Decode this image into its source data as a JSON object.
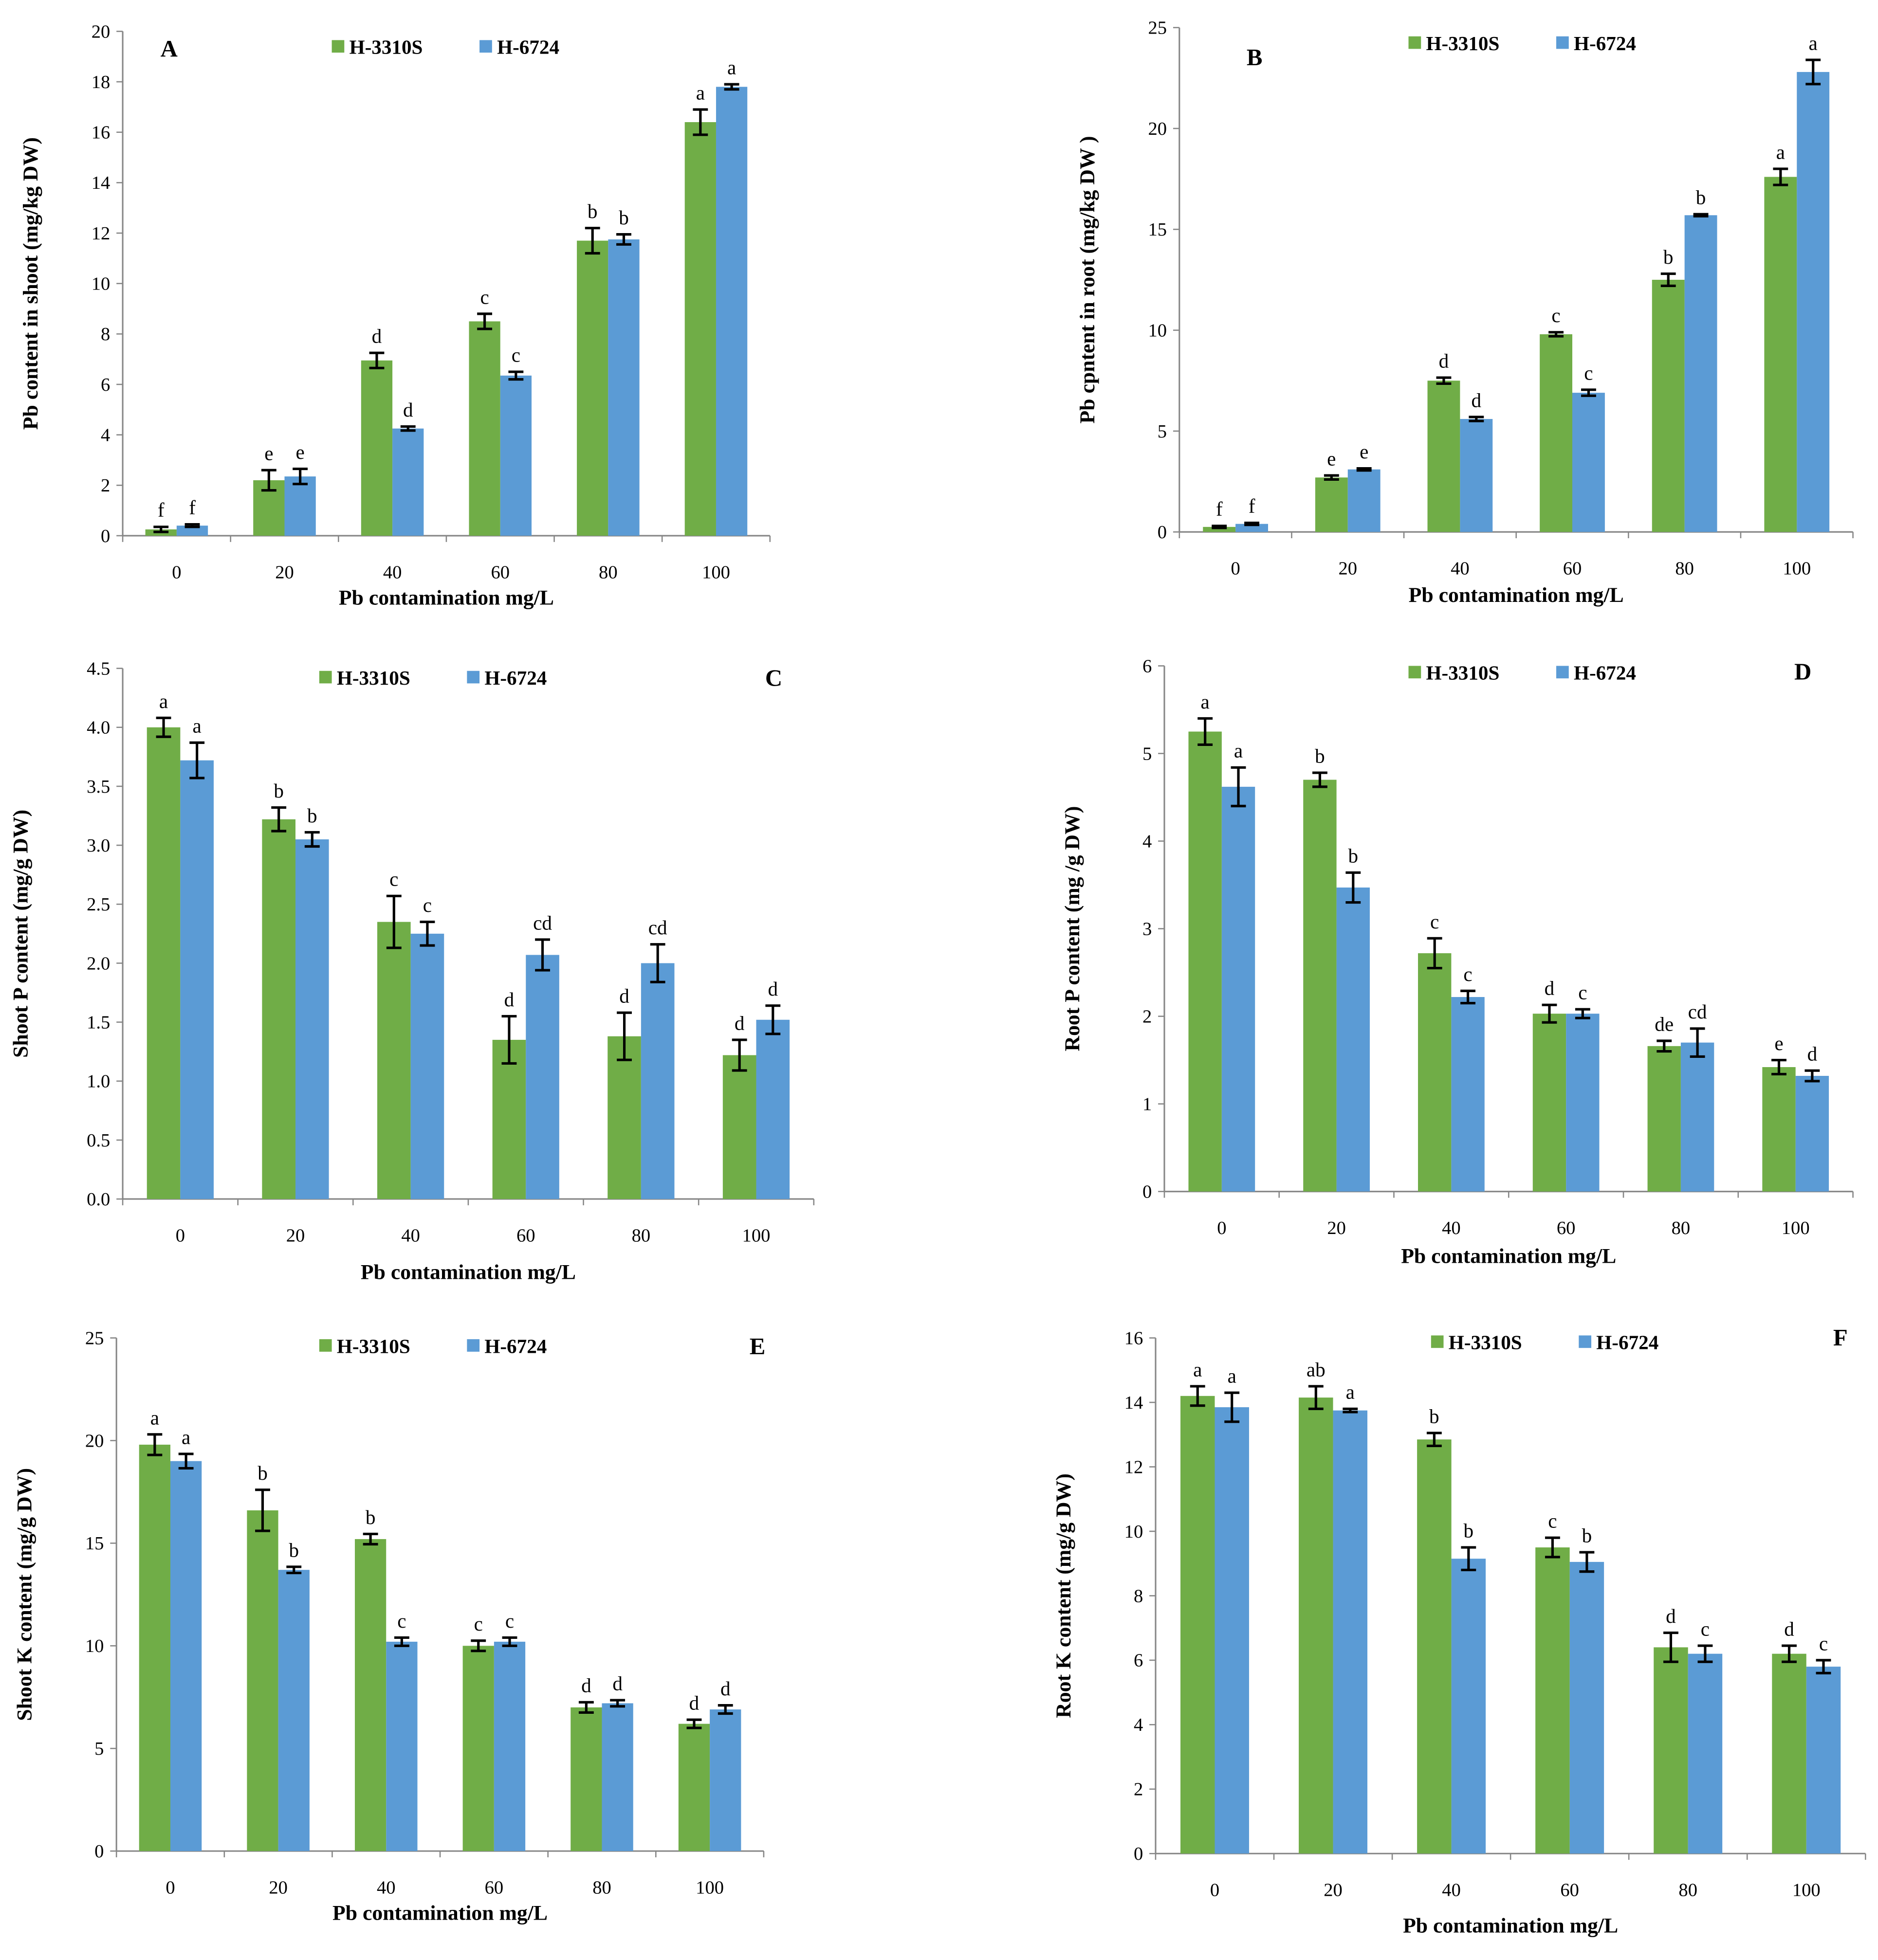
{
  "colors": {
    "H-3310S": "#70AD47",
    "H-6724": "#5B9BD5",
    "axis": "#868686"
  },
  "chart_data": [
    {
      "type": "bar",
      "panel": "A",
      "title": "A",
      "categories": [
        "0",
        "20",
        "40",
        "60",
        "80",
        "100"
      ],
      "xlabel": "Pb contamination mg/L",
      "ylabel": "Pb content  in shoot (mg/kg DW)",
      "ylim": [
        0,
        20
      ],
      "ystep": 2,
      "ydecimals": 0,
      "legend": "top-center",
      "series": [
        {
          "name": "H-3310S",
          "values": [
            0.25,
            2.2,
            6.95,
            8.5,
            11.7,
            16.4
          ],
          "errors": [
            0.1,
            0.4,
            0.3,
            0.3,
            0.5,
            0.5
          ],
          "letters": [
            "f",
            "e",
            "d",
            "c",
            "b",
            "a"
          ]
        },
        {
          "name": "H-6724",
          "values": [
            0.4,
            2.35,
            4.25,
            6.35,
            11.75,
            17.8
          ],
          "errors": [
            0.05,
            0.3,
            0.08,
            0.15,
            0.2,
            0.1
          ],
          "letters": [
            "f",
            "e",
            "d",
            "c",
            "b",
            "a"
          ]
        }
      ]
    },
    {
      "type": "bar",
      "panel": "B",
      "title": "B",
      "categories": [
        "0",
        "20",
        "40",
        "60",
        "80",
        "100"
      ],
      "xlabel": "Pb contamination mg/L",
      "ylabel": "Pb cpntent  in root (mg/kg DW )",
      "ylim": [
        0,
        25
      ],
      "ystep": 5,
      "ydecimals": 0,
      "legend": "top-center",
      "series": [
        {
          "name": "H-3310S",
          "values": [
            0.25,
            2.7,
            7.5,
            9.8,
            12.5,
            17.6
          ],
          "errors": [
            0.05,
            0.1,
            0.15,
            0.1,
            0.3,
            0.4
          ],
          "letters": [
            "f",
            "e",
            "d",
            "c",
            "b",
            "a"
          ]
        },
        {
          "name": "H-6724",
          "values": [
            0.4,
            3.1,
            5.6,
            6.9,
            15.7,
            22.8
          ],
          "errors": [
            0.05,
            0.05,
            0.1,
            0.15,
            0.05,
            0.6
          ],
          "letters": [
            "f",
            "e",
            "d",
            "c",
            "b",
            "a"
          ]
        }
      ]
    },
    {
      "type": "bar",
      "panel": "C",
      "title": "C",
      "categories": [
        "0",
        "20",
        "40",
        "60",
        "80",
        "100"
      ],
      "xlabel": "Pb contamination mg/L",
      "ylabel": "Shoot P content  (mg/g DW)",
      "ylim": [
        0,
        4.5
      ],
      "ystep": 0.5,
      "ydecimals": 1,
      "legend": "top-center",
      "series": [
        {
          "name": "H-3310S",
          "values": [
            4.0,
            3.22,
            2.35,
            1.35,
            1.38,
            1.22
          ],
          "errors": [
            0.08,
            0.1,
            0.22,
            0.2,
            0.2,
            0.13
          ],
          "letters": [
            "a",
            "b",
            "c",
            "d",
            "d",
            "d"
          ]
        },
        {
          "name": "H-6724",
          "values": [
            3.72,
            3.05,
            2.25,
            2.07,
            2.0,
            1.52
          ],
          "errors": [
            0.15,
            0.06,
            0.1,
            0.13,
            0.16,
            0.12
          ],
          "letters": [
            "a",
            "b",
            "c",
            "cd",
            "cd",
            "d"
          ]
        }
      ]
    },
    {
      "type": "bar",
      "panel": "D",
      "title": "D",
      "categories": [
        "0",
        "20",
        "40",
        "60",
        "80",
        "100"
      ],
      "xlabel": "Pb contamination mg/L",
      "ylabel": "Root P content  (mg /g DW)",
      "ylim": [
        0,
        6
      ],
      "ystep": 1,
      "ydecimals": 0,
      "legend": "top-center",
      "series": [
        {
          "name": "H-3310S",
          "values": [
            5.25,
            4.7,
            2.72,
            2.03,
            1.66,
            1.42
          ],
          "errors": [
            0.15,
            0.08,
            0.17,
            0.1,
            0.06,
            0.08
          ],
          "letters": [
            "a",
            "b",
            "c",
            "d",
            "de",
            "e"
          ]
        },
        {
          "name": "H-6724",
          "values": [
            4.62,
            3.47,
            2.22,
            2.03,
            1.7,
            1.32
          ],
          "errors": [
            0.22,
            0.17,
            0.07,
            0.05,
            0.16,
            0.06
          ],
          "letters": [
            "a",
            "b",
            "c",
            "c",
            "cd",
            "d"
          ]
        }
      ]
    },
    {
      "type": "bar",
      "panel": "E",
      "title": "E",
      "categories": [
        "0",
        "20",
        "40",
        "60",
        "80",
        "100"
      ],
      "xlabel": "Pb contamination mg/L",
      "ylabel": "Shoot K content  (mg/g DW)",
      "ylim": [
        0,
        25
      ],
      "ystep": 5,
      "ydecimals": 0,
      "legend": "top-center",
      "series": [
        {
          "name": "H-3310S",
          "values": [
            19.8,
            16.6,
            15.2,
            10.0,
            7.0,
            6.2
          ],
          "errors": [
            0.5,
            1.0,
            0.25,
            0.25,
            0.25,
            0.2
          ],
          "letters": [
            "a",
            "b",
            "b",
            "c",
            "d",
            "d"
          ]
        },
        {
          "name": "H-6724",
          "values": [
            19.0,
            13.7,
            10.2,
            10.2,
            7.2,
            6.9
          ],
          "errors": [
            0.35,
            0.15,
            0.2,
            0.2,
            0.15,
            0.2
          ],
          "letters": [
            "a",
            "b",
            "c",
            "c",
            "d",
            "d"
          ]
        }
      ]
    },
    {
      "type": "bar",
      "panel": "F",
      "title": "F",
      "categories": [
        "0",
        "20",
        "40",
        "60",
        "80",
        "100"
      ],
      "xlabel": "Pb contamination mg/L",
      "ylabel": "Root K content  (mg/g DW)",
      "ylim": [
        0,
        16
      ],
      "ystep": 2,
      "ydecimals": 0,
      "legend": "top-center",
      "series": [
        {
          "name": "H-3310S",
          "values": [
            14.2,
            14.15,
            12.85,
            9.5,
            6.4,
            6.2
          ],
          "errors": [
            0.3,
            0.35,
            0.2,
            0.3,
            0.45,
            0.25
          ],
          "letters": [
            "a",
            "ab",
            "b",
            "c",
            "d",
            "d"
          ]
        },
        {
          "name": "H-6724",
          "values": [
            13.85,
            13.75,
            9.15,
            9.05,
            6.2,
            5.8
          ],
          "errors": [
            0.45,
            0.05,
            0.35,
            0.3,
            0.25,
            0.2
          ],
          "letters": [
            "a",
            "a",
            "b",
            "b",
            "c",
            "c"
          ]
        }
      ]
    }
  ]
}
